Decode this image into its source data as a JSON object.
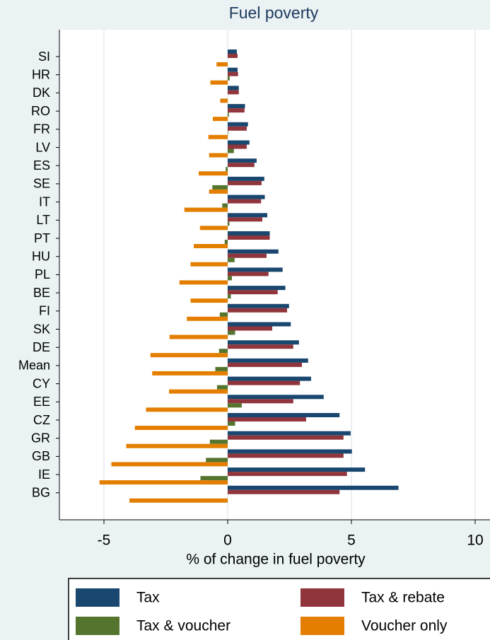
{
  "chart_data": {
    "type": "bar",
    "orientation": "horizontal",
    "title": "Fuel poverty",
    "xlabel": "% of change in fuel poverty",
    "categories": [
      "SI",
      "HR",
      "DK",
      "RO",
      "FR",
      "LV",
      "ES",
      "SE",
      "IT",
      "LT",
      "PT",
      "HU",
      "PL",
      "BE",
      "FI",
      "SK",
      "DE",
      "Mean",
      "CY",
      "EE",
      "CZ",
      "GR",
      "GB",
      "IE",
      "BG"
    ],
    "series": [
      {
        "name": "Tax",
        "color": "#1a476f",
        "values": [
          0.37,
          0.4,
          0.45,
          0.7,
          0.82,
          0.88,
          1.17,
          1.48,
          1.5,
          1.6,
          1.7,
          2.05,
          2.22,
          2.33,
          2.48,
          2.55,
          2.88,
          3.25,
          3.37,
          3.88,
          4.52,
          4.97,
          5.02,
          5.55,
          6.9
        ]
      },
      {
        "name": "Tax & rebate",
        "color": "#90353b",
        "values": [
          0.4,
          0.42,
          0.45,
          0.68,
          0.77,
          0.77,
          1.08,
          1.37,
          1.35,
          1.4,
          1.7,
          1.57,
          1.65,
          2.02,
          2.4,
          1.8,
          2.65,
          3.0,
          2.92,
          2.65,
          3.17,
          4.68,
          4.68,
          4.82,
          4.52
        ]
      },
      {
        "name": "Tax & voucher",
        "color": "#55752f",
        "values": [
          0,
          0.08,
          0,
          0.05,
          0.02,
          0.25,
          -0.08,
          -0.62,
          -0.22,
          0.07,
          -0.12,
          0.28,
          0.17,
          0.13,
          -0.32,
          0.3,
          -0.35,
          -0.5,
          -0.43,
          0.57,
          0.3,
          -0.72,
          -0.88,
          -1.1,
          0
        ]
      },
      {
        "name": "Voucher only",
        "color": "#e37e00",
        "values": [
          -0.45,
          -0.7,
          -0.3,
          -0.6,
          -0.78,
          -0.75,
          -1.17,
          -0.75,
          -1.75,
          -1.12,
          -1.37,
          -1.5,
          -1.95,
          -1.5,
          -1.65,
          -2.35,
          -3.12,
          -3.05,
          -2.37,
          -3.3,
          -3.75,
          -4.1,
          -4.7,
          -5.18,
          -3.97
        ]
      }
    ],
    "xlim": [
      -6.8,
      10.6
    ],
    "xticks": [
      -5,
      0,
      5,
      10
    ],
    "grid": true,
    "legend": "bottom"
  }
}
